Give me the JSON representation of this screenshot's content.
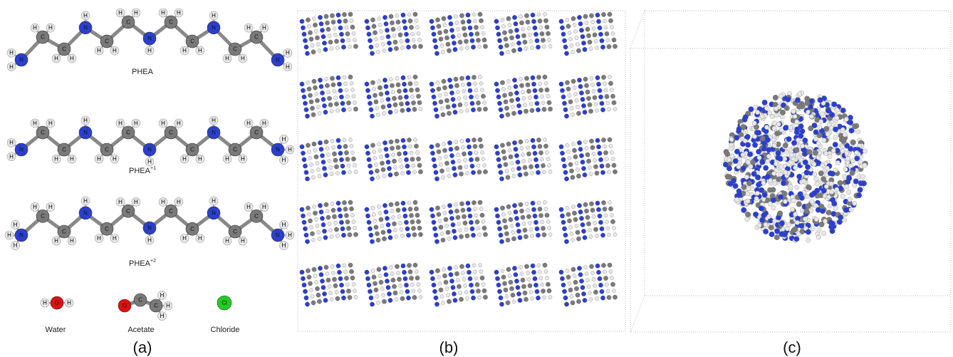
{
  "panels": [
    {
      "label": "(a)",
      "molecules": [
        {
          "name": "PHEA",
          "atoms": [
            [
              "N",
              "H",
              "H"
            ],
            [
              "C",
              "H",
              "H"
            ],
            [
              "C",
              "H",
              "H"
            ],
            [
              "N",
              "H"
            ],
            [
              "C",
              "H",
              "H"
            ],
            [
              "C",
              "H",
              "H"
            ],
            [
              "N",
              "H"
            ],
            [
              "C",
              "H",
              "H"
            ],
            [
              "C",
              "H",
              "H"
            ],
            [
              "N",
              "H"
            ],
            [
              "C",
              "H",
              "H"
            ],
            [
              "C",
              "H",
              "H"
            ],
            [
              "N",
              "H",
              "H"
            ]
          ]
        },
        {
          "name": "PHEA",
          "charge": "+1",
          "atoms": [
            [
              "N",
              "H",
              "H"
            ],
            [
              "C",
              "H",
              "H"
            ],
            [
              "C",
              "H",
              "H"
            ],
            [
              "N",
              "H"
            ],
            [
              "C",
              "H",
              "H"
            ],
            [
              "C",
              "H",
              "H"
            ],
            [
              "N",
              "H"
            ],
            [
              "C",
              "H",
              "H"
            ],
            [
              "C",
              "H",
              "H"
            ],
            [
              "N",
              "H"
            ],
            [
              "C",
              "H",
              "H"
            ],
            [
              "C",
              "H",
              "H"
            ],
            [
              "N",
              "H",
              "H",
              "H"
            ]
          ]
        },
        {
          "name": "PHEA",
          "charge": "+2",
          "atoms": [
            [
              "N",
              "H",
              "H",
              "H"
            ],
            [
              "C",
              "H",
              "H"
            ],
            [
              "C",
              "H",
              "H"
            ],
            [
              "N",
              "H"
            ],
            [
              "C",
              "H",
              "H"
            ],
            [
              "C",
              "H",
              "H"
            ],
            [
              "N",
              "H"
            ],
            [
              "C",
              "H",
              "H"
            ],
            [
              "C",
              "H",
              "H"
            ],
            [
              "N",
              "H"
            ],
            [
              "C",
              "H",
              "H"
            ],
            [
              "C",
              "H",
              "H"
            ],
            [
              "N",
              "H",
              "H",
              "H"
            ]
          ]
        },
        {
          "name": "Water",
          "atoms": [
            [
              "O",
              "H",
              "H"
            ]
          ]
        },
        {
          "name": "Acetate",
          "atoms": [
            [
              "O"
            ],
            [
              "C"
            ],
            [
              "C",
              "H",
              "H",
              "H"
            ]
          ]
        },
        {
          "name": "Chloride",
          "atoms": [
            [
              "Cl"
            ]
          ]
        }
      ]
    },
    {
      "label": "(b)"
    },
    {
      "label": "(c)"
    }
  ]
}
